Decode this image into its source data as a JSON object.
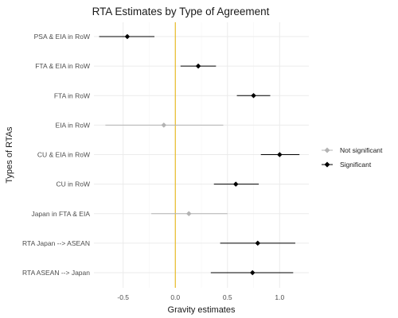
{
  "chart_data": {
    "type": "scatter",
    "subtype": "coefficient-plot-with-intervals",
    "title": "RTA Estimates by Type of Agreement",
    "xlabel": "Gravity estimates",
    "ylabel": "Types of RTAs",
    "xlim": [
      -0.78,
      1.28
    ],
    "x_ticks": [
      -0.5,
      0.0,
      0.5,
      1.0
    ],
    "x_tick_labels": [
      "-0.5",
      "0.0",
      "0.5",
      "1.0"
    ],
    "reference_line": {
      "x": 0,
      "color": "#e6b000"
    },
    "grid": true,
    "legend": {
      "placement": "right",
      "entries": [
        {
          "label": "Not significant",
          "color": "#b3b3b3"
        },
        {
          "label": "Significant",
          "color": "#000000"
        }
      ]
    },
    "categories": [
      "PSA & EIA in RoW",
      "FTA & EIA in RoW",
      "FTA in RoW",
      "EIA in RoW",
      "CU & EIA in RoW",
      "CU in RoW",
      "Japan in FTA & EIA",
      "RTA Japan --> ASEAN",
      "RTA ASEAN --> Japan"
    ],
    "points": [
      {
        "label": "PSA & EIA in RoW",
        "estimate": -0.46,
        "lower": -0.73,
        "upper": -0.2,
        "significant": true
      },
      {
        "label": "FTA & EIA in RoW",
        "estimate": 0.22,
        "lower": 0.05,
        "upper": 0.39,
        "significant": true
      },
      {
        "label": "FTA in RoW",
        "estimate": 0.75,
        "lower": 0.59,
        "upper": 0.91,
        "significant": true
      },
      {
        "label": "EIA in RoW",
        "estimate": -0.11,
        "lower": -0.67,
        "upper": 0.46,
        "significant": false
      },
      {
        "label": "CU & EIA in RoW",
        "estimate": 1.0,
        "lower": 0.82,
        "upper": 1.19,
        "significant": true
      },
      {
        "label": "CU in RoW",
        "estimate": 0.58,
        "lower": 0.37,
        "upper": 0.8,
        "significant": true
      },
      {
        "label": "Japan in FTA & EIA",
        "estimate": 0.13,
        "lower": -0.23,
        "upper": 0.5,
        "significant": false
      },
      {
        "label": "RTA Japan --> ASEAN",
        "estimate": 0.79,
        "lower": 0.43,
        "upper": 1.15,
        "significant": true
      },
      {
        "label": "RTA ASEAN --> Japan",
        "estimate": 0.74,
        "lower": 0.34,
        "upper": 1.13,
        "significant": true
      }
    ]
  }
}
